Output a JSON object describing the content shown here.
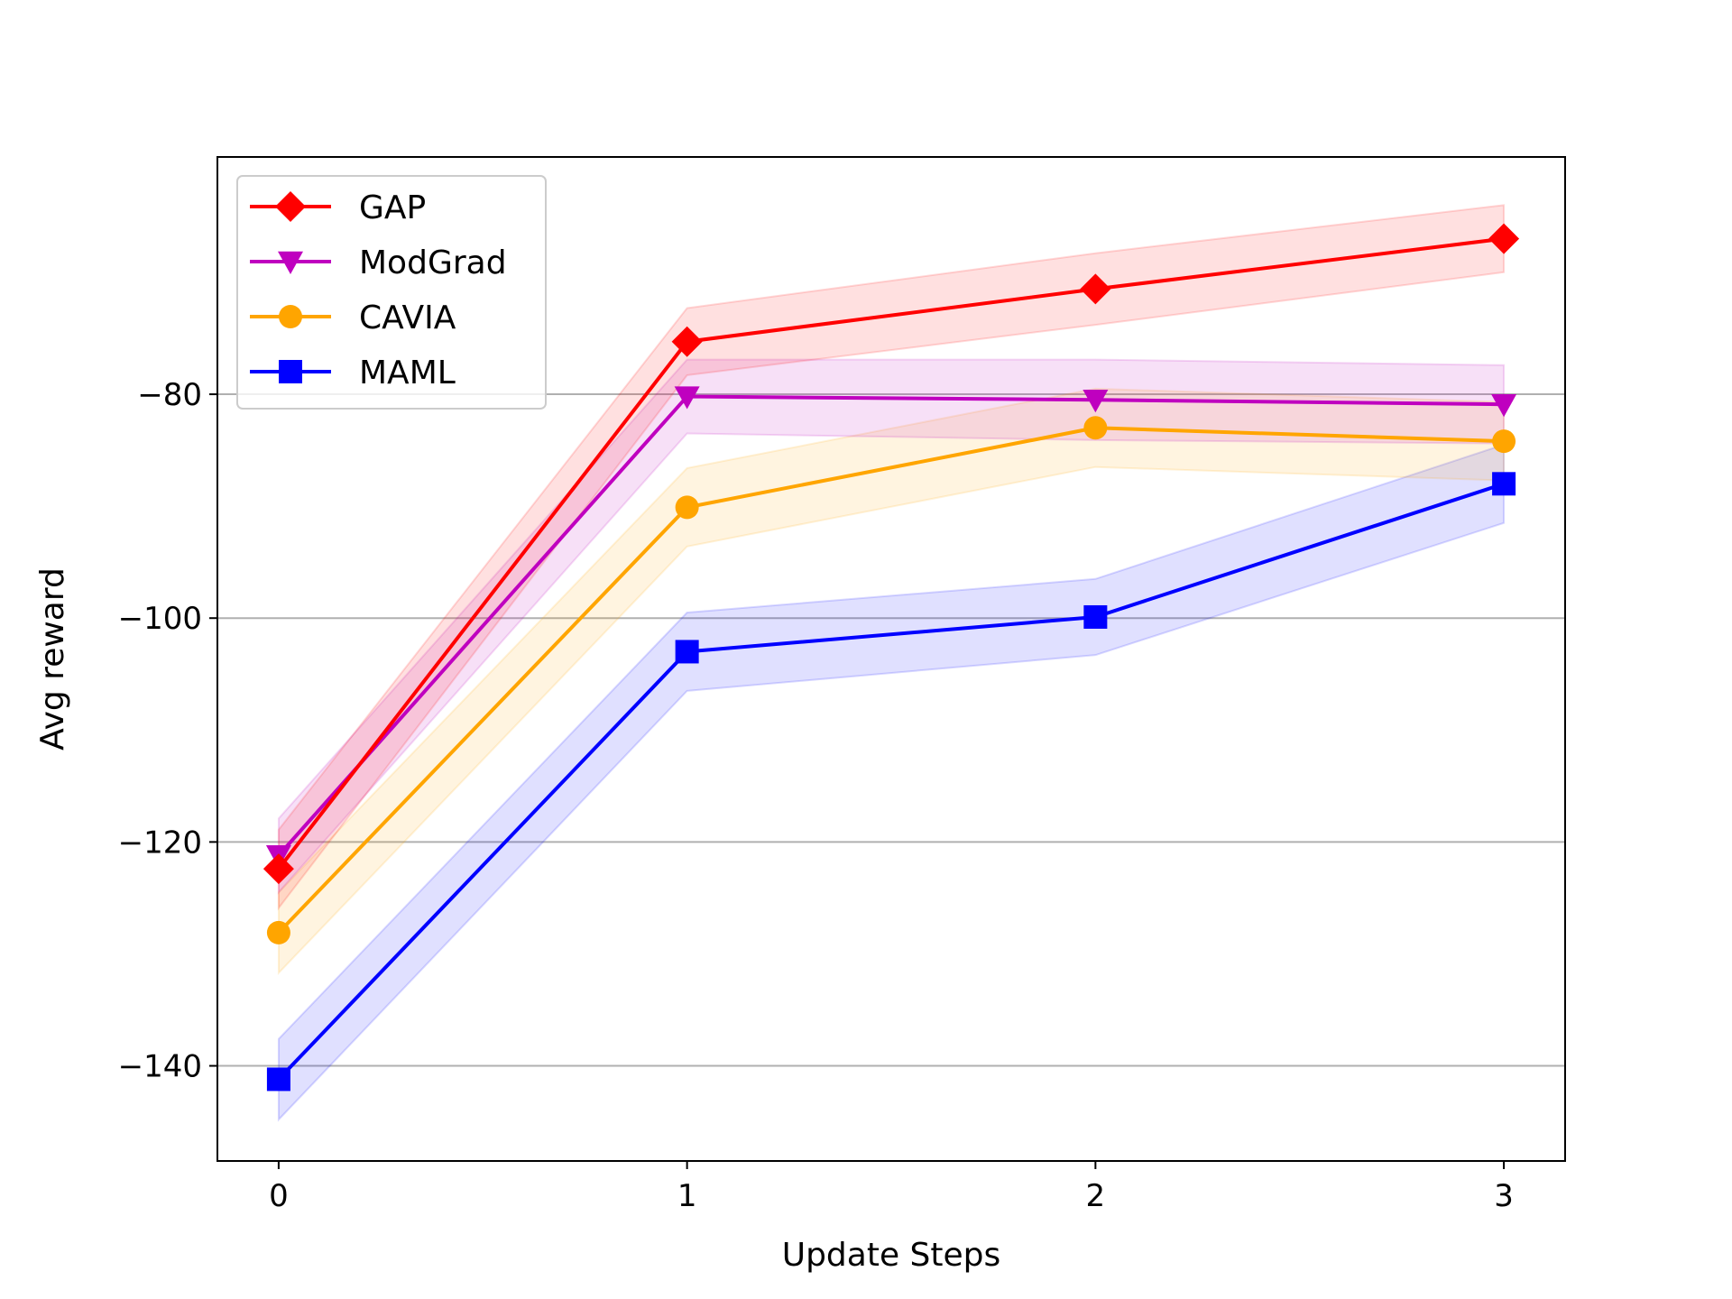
{
  "chart_data": {
    "type": "line",
    "title": "",
    "xlabel": "Update Steps",
    "ylabel": "Avg reward",
    "x": [
      0,
      1,
      2,
      3
    ],
    "xlim": [
      -0.15,
      3.15
    ],
    "ylim": [
      -148.5,
      -58.8
    ],
    "xticks": [
      "0",
      "1",
      "2",
      "3"
    ],
    "yticks": [
      -140,
      -120,
      -100,
      -80
    ],
    "ytick_labels": [
      "−140",
      "−120",
      "−100",
      "−80"
    ],
    "grid": "horizontal",
    "legend_position": "upper-left",
    "series": [
      {
        "name": "GAP",
        "color": "#ff0000",
        "marker": "diamond",
        "values": [
          -122.4,
          -75.3,
          -70.6,
          -66.1
        ],
        "upper": [
          -118.9,
          -72.3,
          -67.4,
          -63.1
        ],
        "lower": [
          -125.9,
          -78.3,
          -73.8,
          -69.1
        ]
      },
      {
        "name": "ModGrad",
        "color": "#bf00bf",
        "marker": "triangle-down",
        "values": [
          -121.2,
          -80.2,
          -80.5,
          -80.9
        ],
        "upper": [
          -117.9,
          -76.9,
          -76.9,
          -77.4
        ],
        "lower": [
          -124.5,
          -83.5,
          -84.1,
          -84.4
        ]
      },
      {
        "name": "CAVIA",
        "color": "#ffa500",
        "marker": "circle",
        "values": [
          -128.1,
          -90.1,
          -83.0,
          -84.2
        ],
        "upper": [
          -124.5,
          -86.6,
          -79.5,
          -80.7
        ],
        "lower": [
          -131.7,
          -93.6,
          -86.5,
          -87.7
        ]
      },
      {
        "name": "MAML",
        "color": "#0000ff",
        "marker": "square",
        "values": [
          -141.2,
          -103.0,
          -99.9,
          -88.0
        ],
        "upper": [
          -137.6,
          -99.5,
          -96.5,
          -84.5
        ],
        "lower": [
          -144.8,
          -106.5,
          -103.3,
          -91.5
        ]
      }
    ]
  }
}
